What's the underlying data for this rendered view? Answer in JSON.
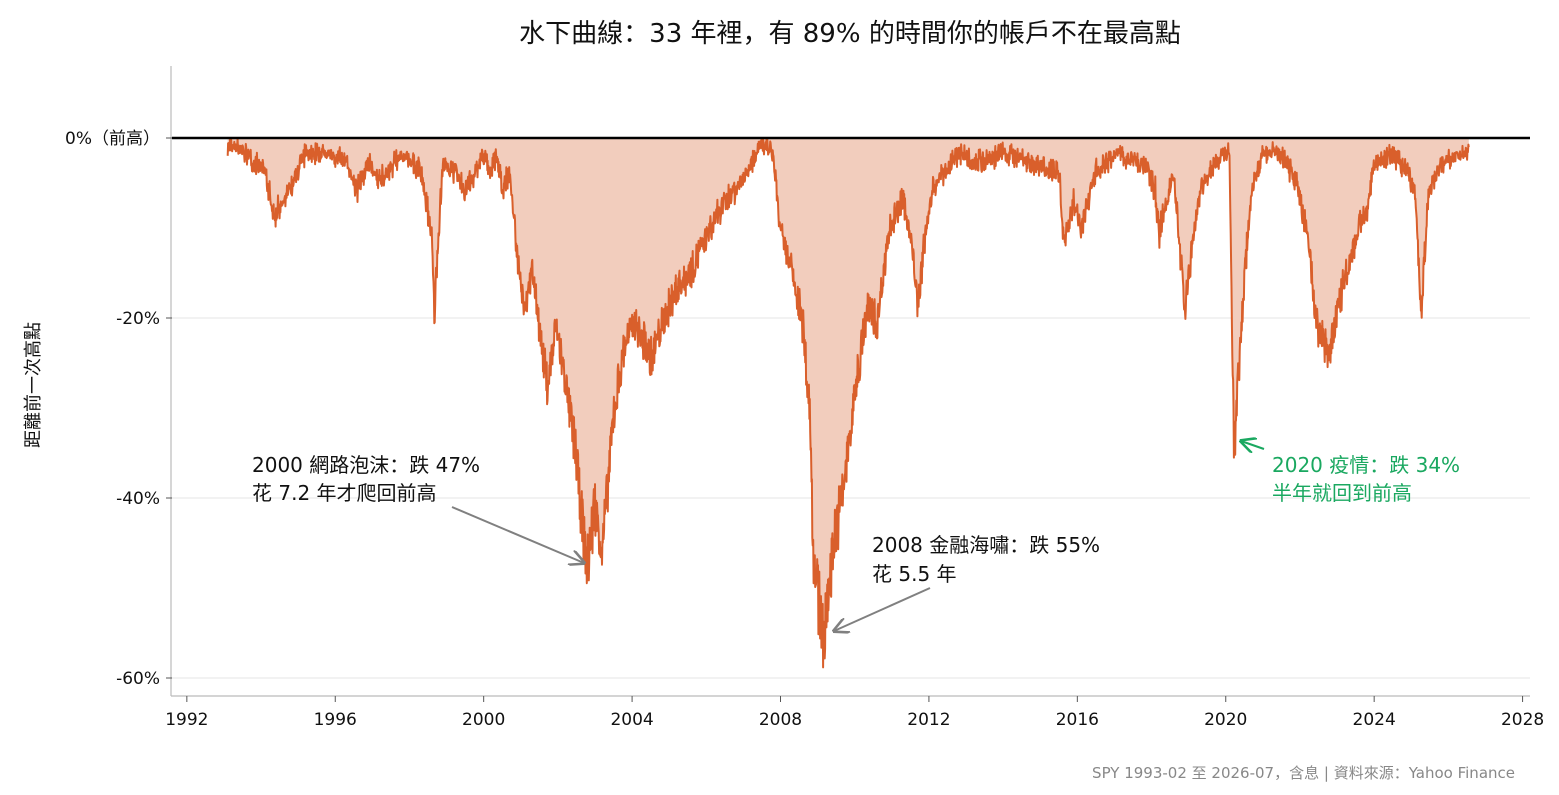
{
  "chart_data": {
    "type": "area",
    "title": "水下曲線：33 年裡，有 89% 的時間你的帳戶不在最高點",
    "ylabel": "距離前一次高點",
    "xlabel": "",
    "xlim": [
      1991.6,
      2028.2
    ],
    "ylim": [
      -62,
      8
    ],
    "x_ticks": [
      1992,
      1996,
      2000,
      2004,
      2008,
      2012,
      2016,
      2020,
      2024,
      2028
    ],
    "x_tick_labels": [
      "1992",
      "1996",
      "2000",
      "2004",
      "2008",
      "2012",
      "2016",
      "2020",
      "2024",
      "2028"
    ],
    "y_ticks": [
      0,
      -20,
      -40,
      -60
    ],
    "y_tick_labels": [
      "0%（前高）",
      "-20%",
      "-40%",
      "-60%"
    ],
    "grid": "horizontal",
    "colors": {
      "line": "#d95f2b",
      "fill": "#f2cdbd",
      "baseline": "#000000",
      "annotation_green": "#1aa860",
      "arrow": "#808080"
    },
    "series": [
      {
        "x": [
          1993.1,
          1993.6,
          1994.1,
          1994.35,
          1994.5,
          1994.8,
          1995.2,
          1995.8,
          1996.3,
          1996.6,
          1996.9,
          1997.2,
          1997.8,
          1998.3,
          1998.6,
          1998.67,
          1998.75,
          1998.9,
          1999.2,
          1999.5,
          1999.8,
          2000.0,
          2000.15,
          2000.35,
          2000.5,
          2000.7,
          2000.9,
          2001.1,
          2001.3,
          2001.5,
          2001.72,
          2001.95,
          2002.2,
          2002.5,
          2002.79,
          2003.0,
          2003.2,
          2003.5,
          2003.8,
          2004.1,
          2004.5,
          2004.8,
          2005.2,
          2005.6,
          2006.0,
          2006.4,
          2006.8,
          2007.2,
          2007.5,
          2007.8,
          2008.0,
          2008.3,
          2008.6,
          2008.8,
          2008.88,
          2009.0,
          2009.17,
          2009.4,
          2009.7,
          2010.0,
          2010.35,
          2010.6,
          2010.9,
          2011.3,
          2011.5,
          2011.7,
          2011.9,
          2012.1,
          2012.4,
          2012.8,
          2013.3,
          2014.0,
          2014.8,
          2015.5,
          2015.65,
          2015.9,
          2016.1,
          2016.5,
          2017.0,
          2017.8,
          2018.1,
          2018.2,
          2018.6,
          2018.9,
          2018.98,
          2019.3,
          2019.9,
          2020.1,
          2020.22,
          2020.5,
          2020.7,
          2021.0,
          2021.5,
          2021.9,
          2022.2,
          2022.45,
          2022.7,
          2022.8,
          2023.0,
          2023.3,
          2023.6,
          2023.8,
          2024.0,
          2024.5,
          2024.9,
          2025.1,
          2025.27,
          2025.45,
          2025.8,
          2026.2,
          2026.55
        ],
        "y": [
          0,
          -1,
          -3,
          -8,
          -7,
          -5,
          -1,
          -1,
          -2,
          -5,
          -2,
          -4,
          -1,
          -3,
          -10,
          -19,
          -12,
          -2,
          -3,
          -5,
          -3,
          -1,
          -3,
          -1,
          -5,
          -3,
          -12,
          -18,
          -14,
          -20,
          -27,
          -20,
          -26,
          -35,
          -47,
          -40,
          -45,
          -30,
          -22,
          -20,
          -24,
          -20,
          -16,
          -14,
          -10,
          -7,
          -5,
          -2,
          0,
          -1,
          -10,
          -14,
          -20,
          -30,
          -45,
          -50,
          -55,
          -45,
          -38,
          -28,
          -18,
          -20,
          -10,
          -6,
          -10,
          -18,
          -10,
          -5,
          -3,
          -1,
          -2,
          -1,
          -2,
          -3,
          -11,
          -6,
          -9,
          -3,
          -1,
          -2,
          -5,
          -10,
          -3,
          -19,
          -15,
          -5,
          -1,
          -1,
          -34,
          -15,
          -5,
          -1,
          -1,
          -4,
          -10,
          -20,
          -22,
          -24,
          -18,
          -14,
          -9,
          -8,
          -2,
          -1,
          -3,
          -5,
          -19,
          -6,
          -2,
          -1,
          -1
        ]
      }
    ],
    "annotations": [
      {
        "line1": "2000 網路泡沫：跌 47%",
        "line2": "花 7.2 年才爬回前高",
        "target_x": 2002.79,
        "target_y": -47
      },
      {
        "line1": "2008 金融海嘯：跌 55%",
        "line2": "花 5.5 年",
        "target_x": 2009.17,
        "target_y": -55
      },
      {
        "line1": "2020 疫情：跌 34%",
        "line2": "半年就回到前高",
        "target_x": 2020.22,
        "target_y": -34
      }
    ],
    "source": "SPY 1993-02 至 2026-07，含息 | 資料來源：Yahoo Finance"
  }
}
